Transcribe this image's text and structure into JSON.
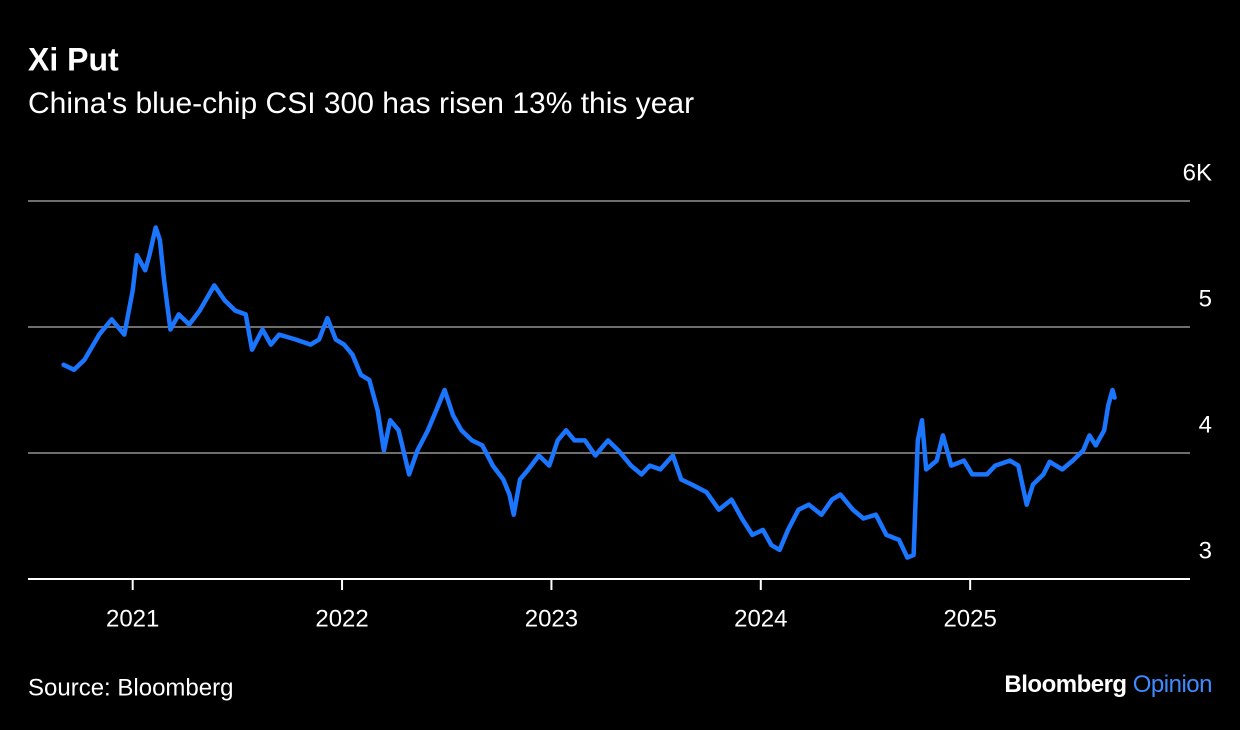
{
  "chart_data": {
    "type": "line",
    "title": "Xi Put",
    "subtitle": "China's blue-chip CSI 300 has risen 13% this year",
    "source": "Source: Bloomberg",
    "brand": "Bloomberg",
    "brand_suffix": "Opinion",
    "xlim": [
      2020.5,
      2026.05
    ],
    "xticks": [
      2021,
      2022,
      2023,
      2024,
      2025
    ],
    "ylim": [
      3,
      6
    ],
    "yticks": [
      3,
      4,
      5,
      {
        "value": 6,
        "label": "6K"
      }
    ],
    "grid": true,
    "x": [
      2020.67,
      2020.72,
      2020.77,
      2020.84,
      2020.9,
      2020.96,
      2021.0,
      2021.02,
      2021.06,
      2021.08,
      2021.11,
      2021.13,
      2021.15,
      2021.18,
      2021.22,
      2021.27,
      2021.32,
      2021.39,
      2021.44,
      2021.49,
      2021.54,
      2021.57,
      2021.62,
      2021.66,
      2021.7,
      2021.78,
      2021.85,
      2021.89,
      2021.93,
      2021.97,
      2022.01,
      2022.05,
      2022.09,
      2022.13,
      2022.17,
      2022.2,
      2022.23,
      2022.27,
      2022.32,
      2022.36,
      2022.41,
      2022.45,
      2022.49,
      2022.53,
      2022.57,
      2022.62,
      2022.67,
      2022.72,
      2022.77,
      2022.8,
      2022.82,
      2022.85,
      2022.89,
      2022.94,
      2022.99,
      2023.03,
      2023.07,
      2023.11,
      2023.16,
      2023.21,
      2023.27,
      2023.32,
      2023.38,
      2023.43,
      2023.47,
      2023.52,
      2023.58,
      2023.62,
      2023.67,
      2023.74,
      2023.8,
      2023.86,
      2023.91,
      2023.96,
      2024.01,
      2024.05,
      2024.09,
      2024.13,
      2024.18,
      2024.23,
      2024.29,
      2024.34,
      2024.38,
      2024.44,
      2024.49,
      2024.55,
      2024.6,
      2024.66,
      2024.7,
      2024.73,
      2024.75,
      2024.77,
      2024.79,
      2024.84,
      2024.87,
      2024.91,
      2024.97,
      2025.01,
      2025.08,
      2025.12,
      2025.19,
      2025.23,
      2025.27,
      2025.3,
      2025.35,
      2025.38,
      2025.44,
      2025.49,
      2025.54,
      2025.57,
      2025.6,
      2025.64,
      2025.66,
      2025.68,
      2025.69
    ],
    "series": [
      {
        "name": "CSI 300",
        "color": "#1a75ff",
        "values": [
          4.7,
          4.66,
          4.74,
          4.94,
          5.06,
          4.94,
          5.29,
          5.57,
          5.45,
          5.57,
          5.79,
          5.69,
          5.37,
          4.98,
          5.1,
          5.02,
          5.13,
          5.33,
          5.21,
          5.13,
          5.1,
          4.82,
          4.98,
          4.86,
          4.94,
          4.9,
          4.86,
          4.9,
          5.07,
          4.9,
          4.86,
          4.78,
          4.62,
          4.58,
          4.34,
          4.02,
          4.26,
          4.18,
          3.83,
          4.02,
          4.18,
          4.34,
          4.5,
          4.3,
          4.18,
          4.1,
          4.06,
          3.9,
          3.79,
          3.67,
          3.51,
          3.79,
          3.87,
          3.98,
          3.9,
          4.1,
          4.18,
          4.1,
          4.1,
          3.98,
          4.1,
          4.02,
          3.9,
          3.83,
          3.9,
          3.87,
          3.98,
          3.79,
          3.75,
          3.69,
          3.55,
          3.63,
          3.48,
          3.35,
          3.39,
          3.27,
          3.23,
          3.39,
          3.55,
          3.59,
          3.51,
          3.63,
          3.67,
          3.55,
          3.48,
          3.51,
          3.35,
          3.31,
          3.17,
          3.19,
          4.1,
          4.26,
          3.87,
          3.94,
          4.14,
          3.9,
          3.94,
          3.83,
          3.83,
          3.9,
          3.94,
          3.9,
          3.59,
          3.75,
          3.83,
          3.93,
          3.87,
          3.94,
          4.02,
          4.14,
          4.06,
          4.18,
          4.38,
          4.5,
          4.44
        ]
      }
    ]
  }
}
